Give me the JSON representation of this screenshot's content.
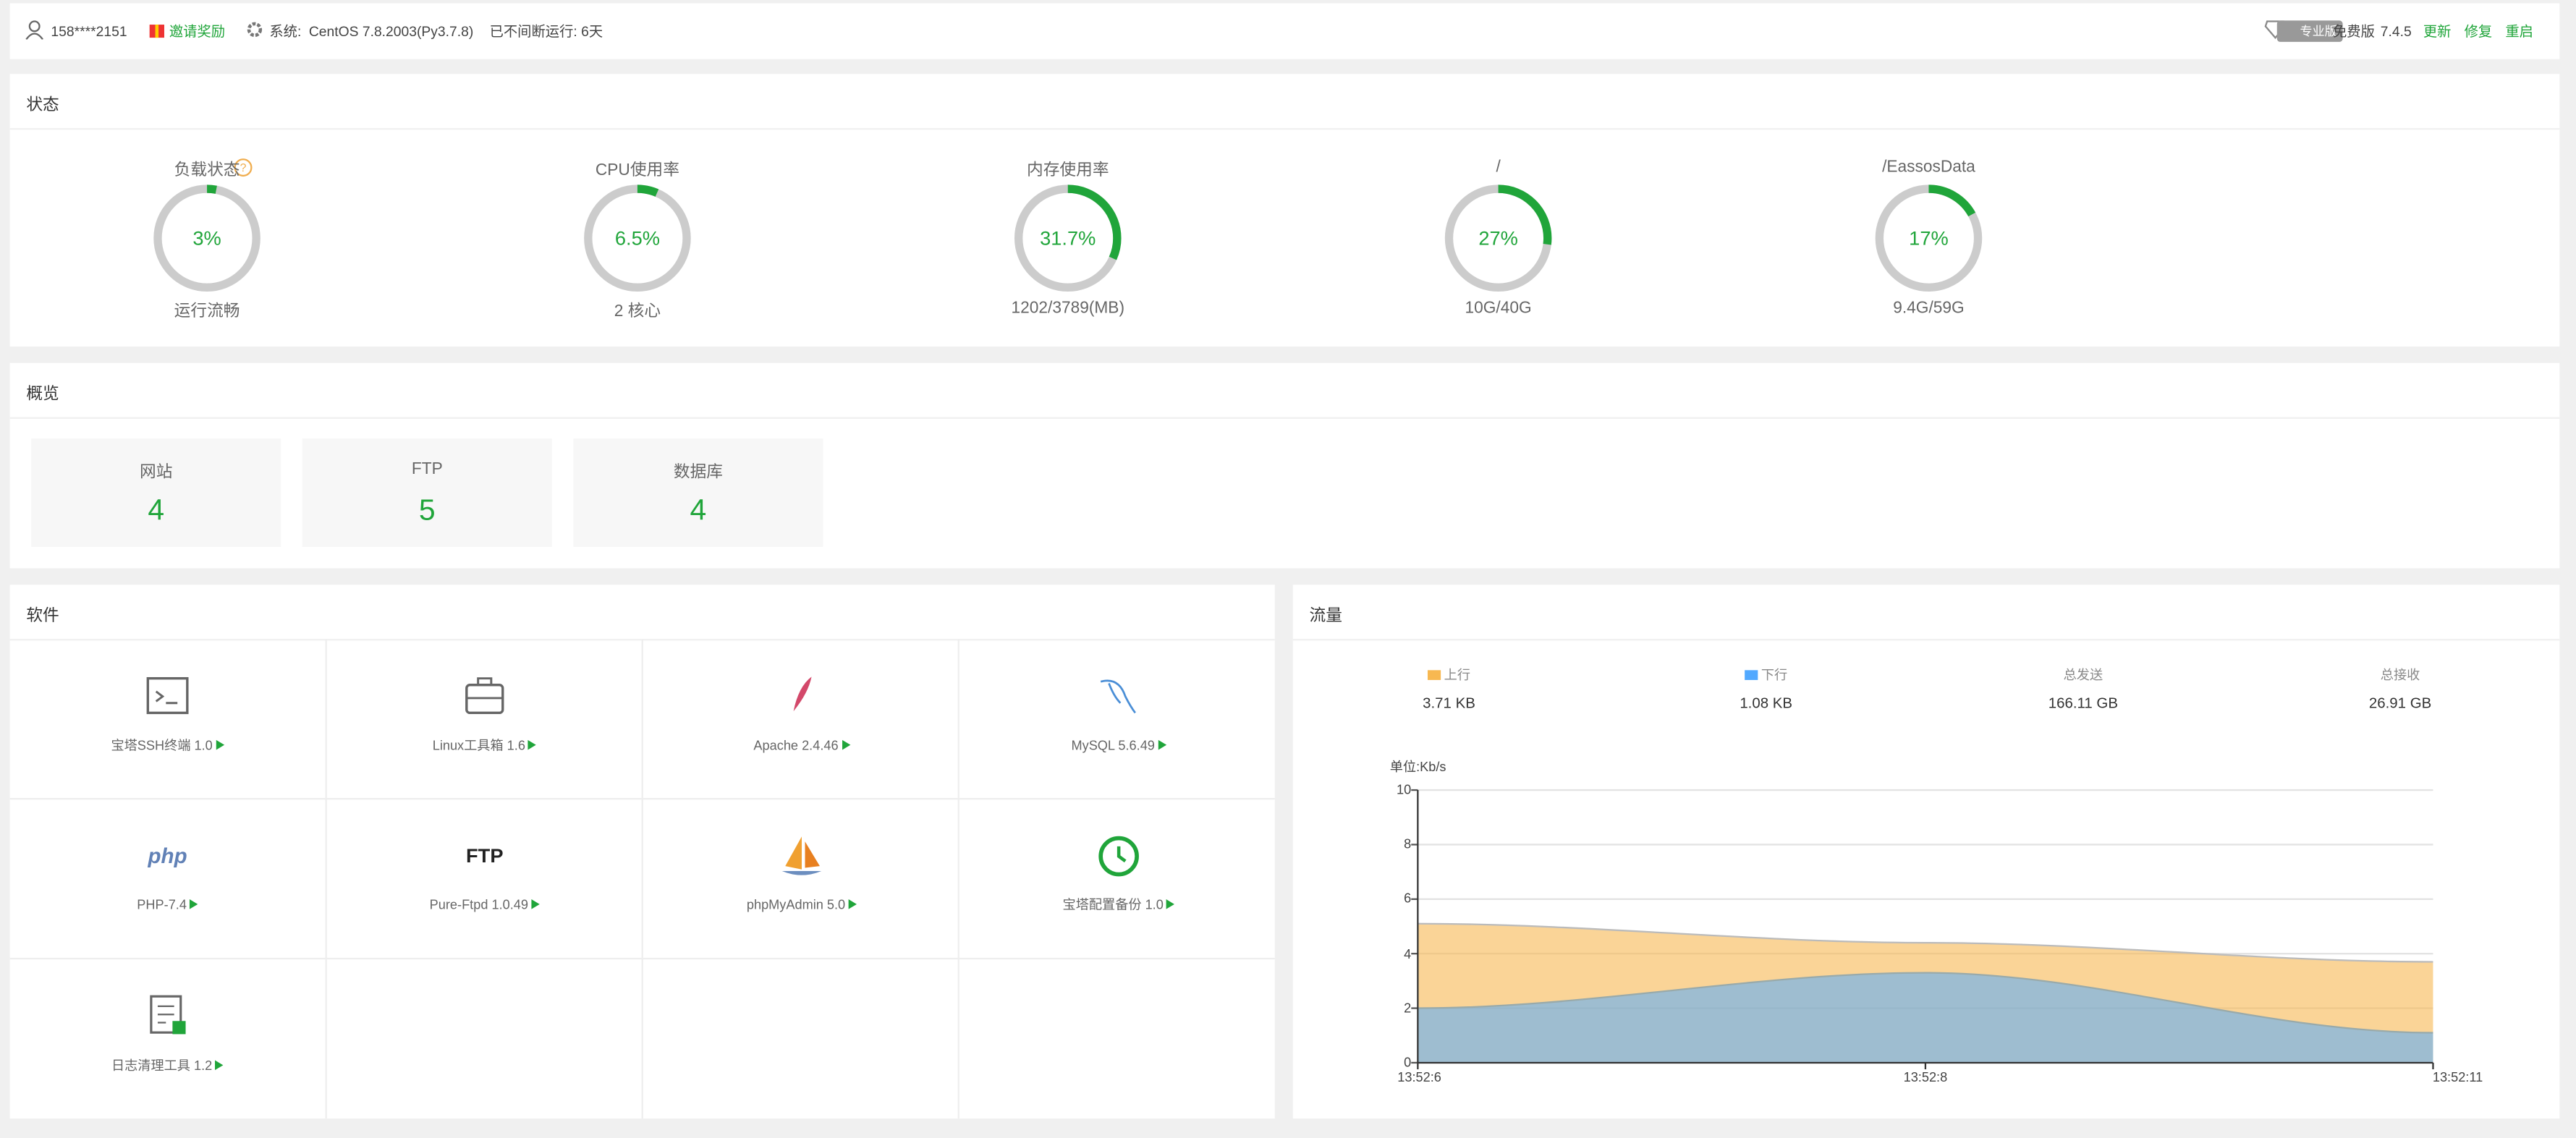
{
  "header": {
    "user": "158****2151",
    "invite": "邀请奖励",
    "system_label": "系统:",
    "system": "CentOS 7.8.2003(Py3.7.8)",
    "uptime": "已不间断运行: 6天",
    "edition_badge": "专业版",
    "edition": "免费版",
    "version": "7.4.5",
    "links": [
      "更新",
      "修复",
      "重启"
    ]
  },
  "status": {
    "title": "状态",
    "gauges": [
      {
        "label": "负载状态",
        "value": 3,
        "value_label": "3%",
        "sub": "运行流畅"
      },
      {
        "label": "CPU使用率",
        "value": 6.5,
        "value_label": "6.5%",
        "sub": "2 核心"
      },
      {
        "label": "内存使用率",
        "value": 31.7,
        "value_label": "31.7%",
        "sub": "1202/3789(MB)"
      },
      {
        "label": "/",
        "value": 27,
        "value_label": "27%",
        "sub": "10G/40G"
      },
      {
        "label": "/EassosData",
        "value": 17,
        "value_label": "17%",
        "sub": "9.4G/59G"
      }
    ]
  },
  "overview": {
    "title": "概览",
    "items": [
      {
        "label": "网站",
        "count": 4
      },
      {
        "label": "FTP",
        "count": 5
      },
      {
        "label": "数据库",
        "count": 4
      }
    ]
  },
  "software": {
    "title": "软件",
    "items": [
      {
        "name": "宝塔SSH终端 1.0"
      },
      {
        "name": "Linux工具箱 1.6"
      },
      {
        "name": "Apache 2.4.46"
      },
      {
        "name": "MySQL 5.6.49"
      },
      {
        "name": "PHP-7.4",
        "icon_text": "php"
      },
      {
        "name": "Pure-Ftpd 1.0.49",
        "icon_text": "FTP"
      },
      {
        "name": "phpMyAdmin 5.0"
      },
      {
        "name": "宝塔配置备份 1.0"
      },
      {
        "name": "日志清理工具 1.2"
      }
    ]
  },
  "traffic": {
    "title": "流量",
    "stats": [
      {
        "value": "3.71 KB"
      },
      {
        "value": "1.08 KB"
      },
      {
        "label": "总发送",
        "value": "166.11 GB"
      },
      {
        "label": "总接收",
        "value": "26.91 GB"
      }
    ],
    "chart": {
      "type": "area",
      "y_label": "单位:Kb/s",
      "categories": [
        "13:52:6",
        "13:52:8",
        "13:52:11"
      ],
      "series": [
        {
          "name": "上行",
          "color": "#f7b851",
          "values": [
            5.1,
            4.4,
            3.7
          ]
        },
        {
          "name": "下行",
          "color": "#52a9ff",
          "values": [
            2.0,
            3.3,
            1.1
          ]
        }
      ],
      "ylim": [
        0,
        10
      ],
      "yticks": [
        0,
        2,
        4,
        6,
        8,
        10
      ],
      "grid": true
    }
  }
}
